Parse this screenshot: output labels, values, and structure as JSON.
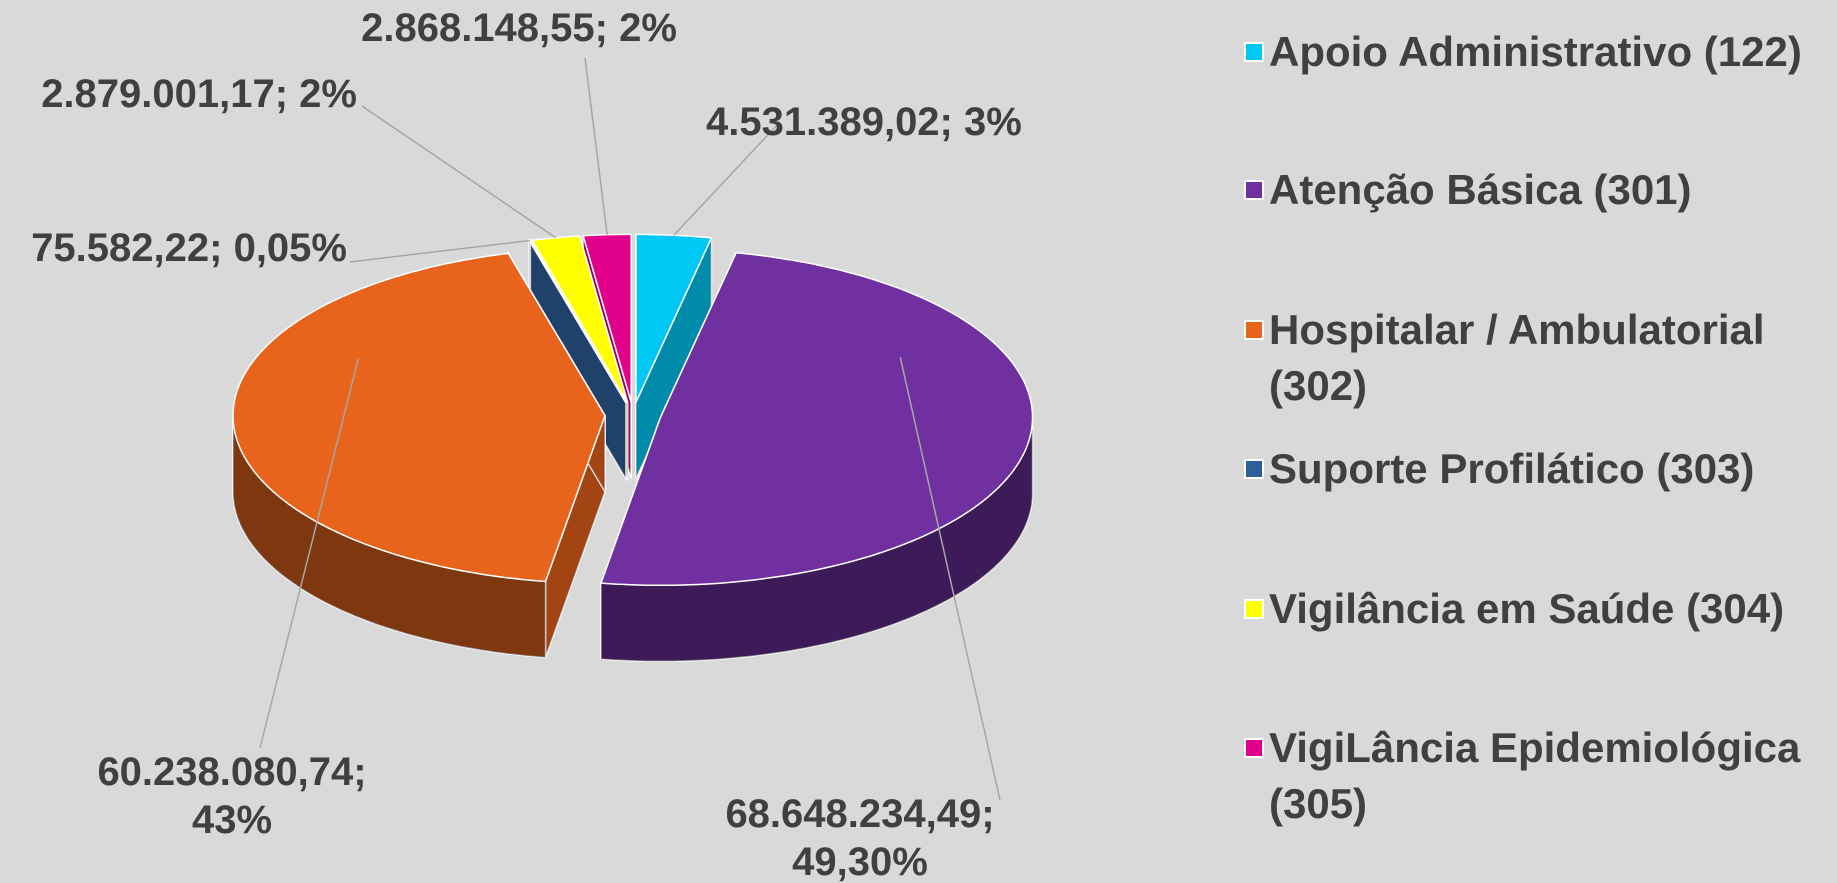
{
  "chart_data": {
    "type": "pie",
    "categories": [
      "Apoio Administrativo (122)",
      "Atenção Básica (301)",
      "Hospitalar / Ambulatorial (302)",
      "Suporte Profilático (303)",
      "Vigilância em Saúde (304)",
      "VigiLância Epidemiológica (305)"
    ],
    "values": [
      4531389.02,
      68648234.49,
      60238080.74,
      75582.22,
      2879001.17,
      2868148.55
    ],
    "value_labels": [
      "4.531.389,02; 3%",
      "68.648.234,49; 49,30%",
      "60.238.080,74; 43%",
      "75.582,22; 0,05%",
      "2.879.001,17; 2%",
      "2.868.148,55; 2%"
    ],
    "colors": [
      "#00c8f5",
      "#7030a0",
      "#e8641c",
      "#2f5f98",
      "#ffff00",
      "#e0008c"
    ],
    "legend": "right"
  }
}
